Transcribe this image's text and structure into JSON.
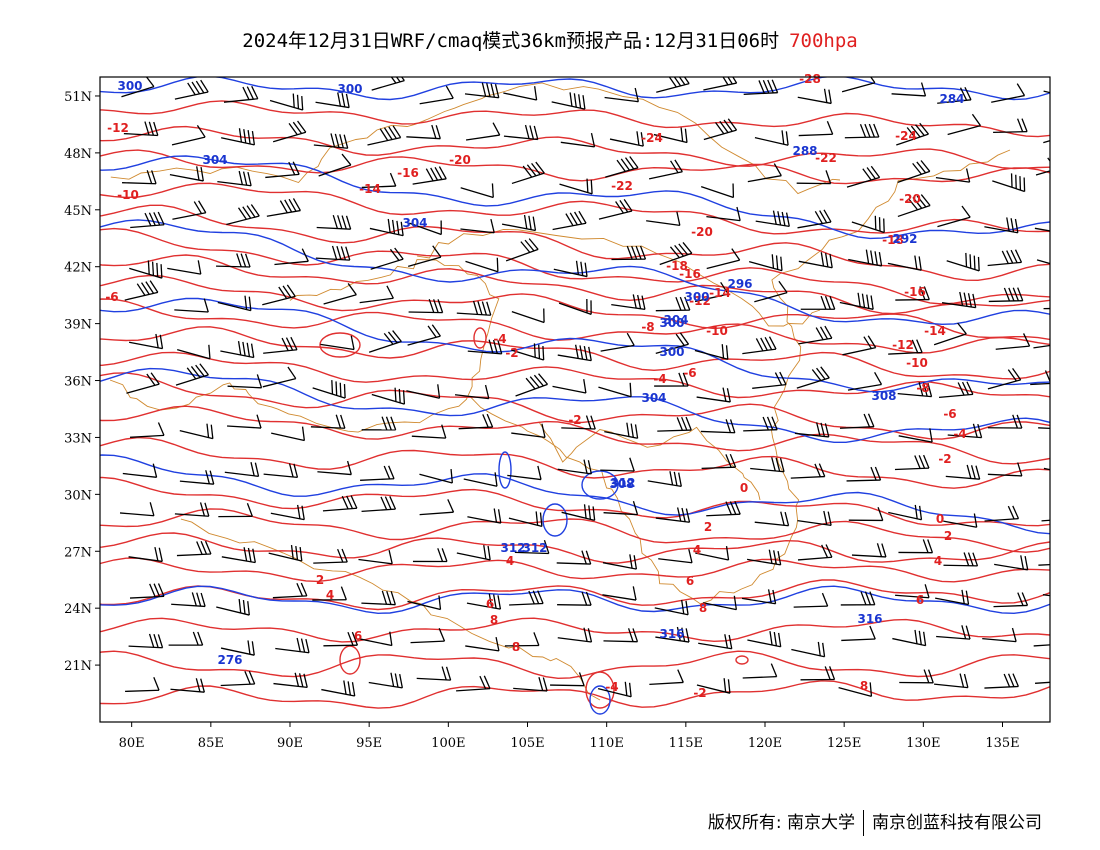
{
  "title": {
    "main": "2024年12月31日WRF/cmaq模式36km预报产品:12月31日06时",
    "level": "700hpa",
    "level_color": "#e02020"
  },
  "axes": {
    "lat_labels": [
      "51N",
      "48N",
      "45N",
      "42N",
      "39N",
      "36N",
      "33N",
      "30N",
      "27N",
      "24N",
      "21N"
    ],
    "lat_values": [
      51,
      48,
      45,
      42,
      39,
      36,
      33,
      30,
      27,
      24,
      21
    ],
    "lon_labels": [
      "80E",
      "85E",
      "90E",
      "95E",
      "100E",
      "105E",
      "110E",
      "115E",
      "120E",
      "125E",
      "130E",
      "135E"
    ],
    "lon_values": [
      80,
      85,
      90,
      95,
      100,
      105,
      110,
      115,
      120,
      125,
      130,
      135
    ],
    "lon_range": [
      78,
      138
    ],
    "lat_range": [
      18,
      52
    ]
  },
  "colors": {
    "temperature_isolines": "#e03030",
    "height_isolines": "#2040e0",
    "borders": "#d08a30",
    "wind_barbs": "#000000"
  },
  "temperature_labels": [
    "-12",
    "-10",
    "-14",
    "-16",
    "-20",
    "-24",
    "-22",
    "-20",
    "-18",
    "-16",
    "-14",
    "-12",
    "-10",
    "-8",
    "-6",
    "-4",
    "-2",
    "0",
    "2",
    "4",
    "6",
    "8",
    "-28",
    "-24",
    "-22",
    "-20",
    "-18",
    "-16",
    "-14",
    "-12",
    "-10",
    "-8",
    "-6",
    "-4",
    "-2",
    "0",
    "2",
    "4",
    "6",
    "8",
    "-2",
    "4",
    "6",
    "8",
    "-4",
    "-6",
    "-4",
    "-2",
    "2",
    "4",
    "6",
    "8"
  ],
  "height_labels": [
    "300",
    "300",
    "304",
    "304",
    "300",
    "300",
    "304",
    "308",
    "312",
    "312",
    "316",
    "316",
    "276",
    "284",
    "288",
    "292",
    "296",
    "300",
    "304",
    "308",
    "312"
  ],
  "legend_note": "",
  "footer": {
    "left": "版权所有: 南京大学",
    "right": "南京创蓝科技有限公司"
  }
}
